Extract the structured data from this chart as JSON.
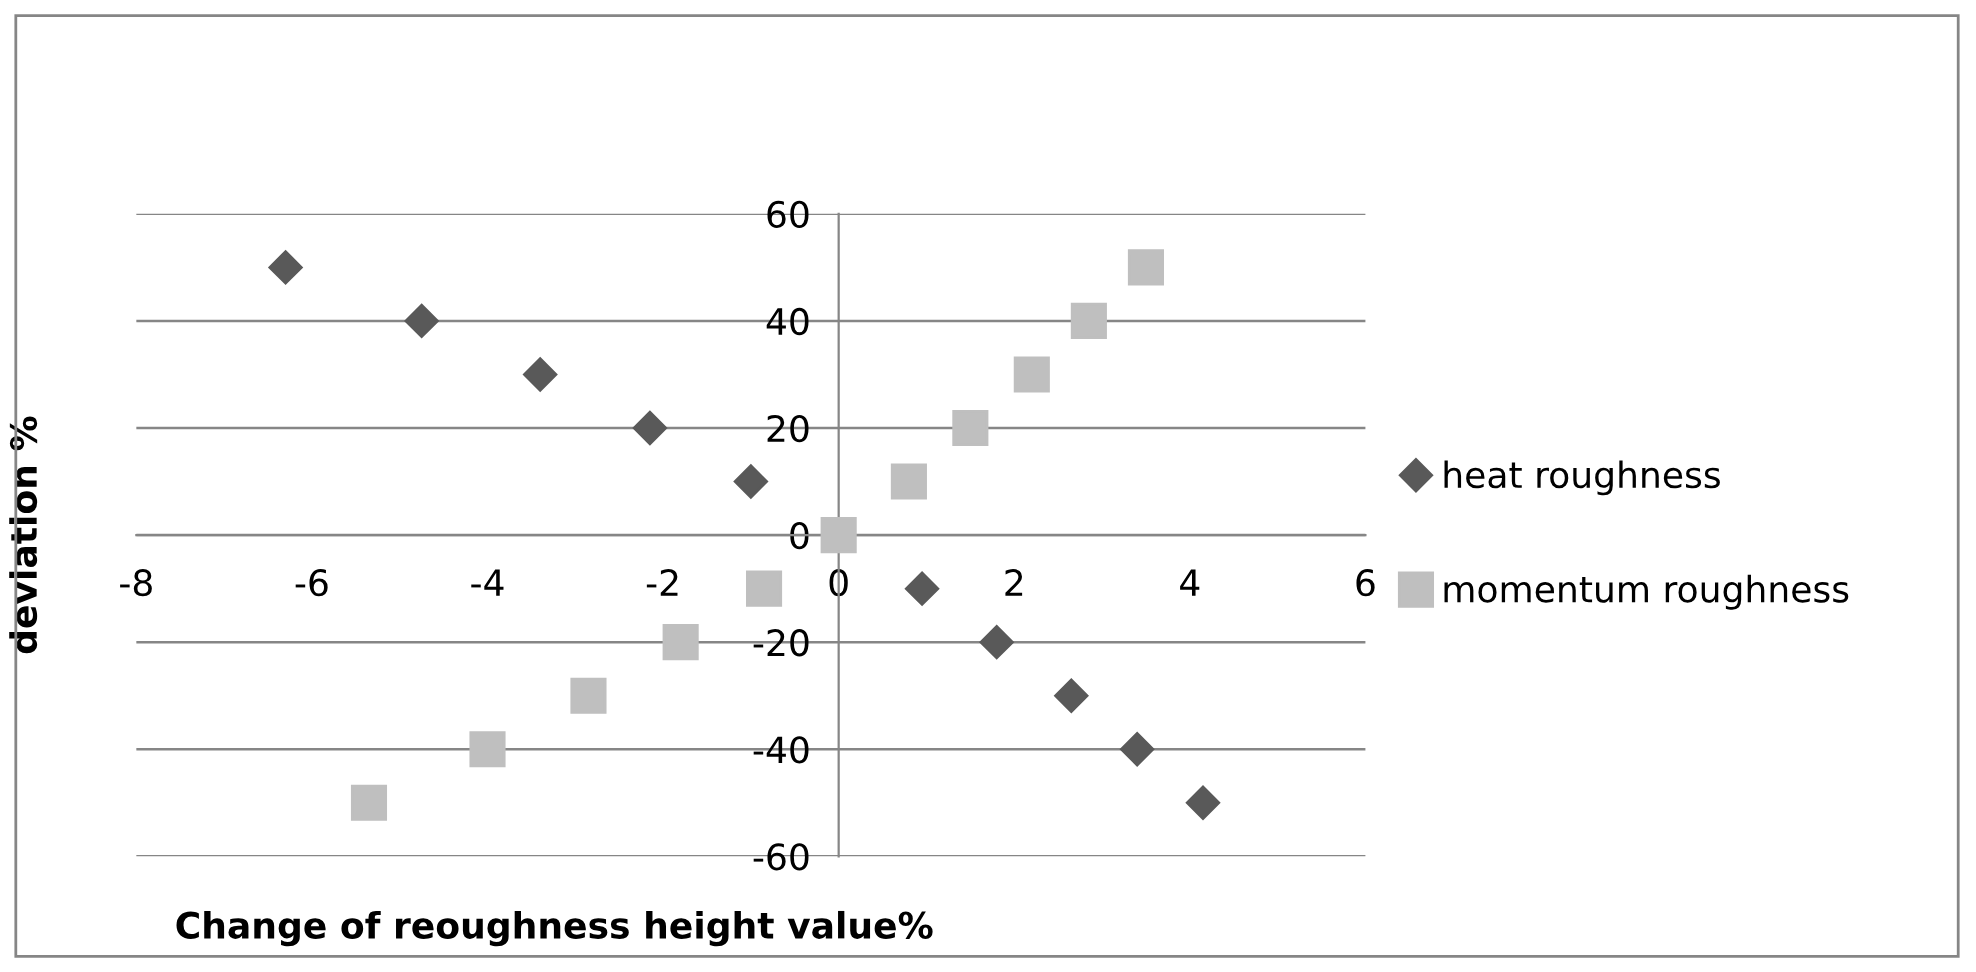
{
  "chart_data": {
    "type": "scatter",
    "xlabel": "Change of reoughness height value%",
    "ylabel": "deviation %",
    "xlim": [
      -8,
      6
    ],
    "xticks": [
      -8,
      -6,
      -4,
      -2,
      0,
      2,
      4,
      6
    ],
    "ylim": [
      -60,
      60
    ],
    "yticks": [
      -60,
      -40,
      -20,
      0,
      20,
      40,
      60
    ],
    "grid": "y",
    "legend": "right",
    "series": [
      {
        "name": "heat roughness",
        "color": "#595959",
        "marker": "diamond",
        "x": [
          -6.3,
          -4.75,
          -3.4,
          -2.15,
          -1.0,
          0.95,
          1.8,
          2.65,
          3.4,
          4.15
        ],
        "values": [
          50,
          40,
          30,
          20,
          10,
          -10,
          -20,
          -30,
          -40,
          -50
        ]
      },
      {
        "name": "momentum roughness",
        "color": "#bfbfbf",
        "marker": "square",
        "x": [
          -5.35,
          -4.0,
          -2.85,
          -1.8,
          -0.85,
          0,
          0.8,
          1.5,
          2.2,
          2.85,
          3.5
        ],
        "values": [
          -50,
          -40,
          -30,
          -20,
          -10,
          0,
          10,
          20,
          30,
          40,
          50
        ]
      }
    ]
  }
}
